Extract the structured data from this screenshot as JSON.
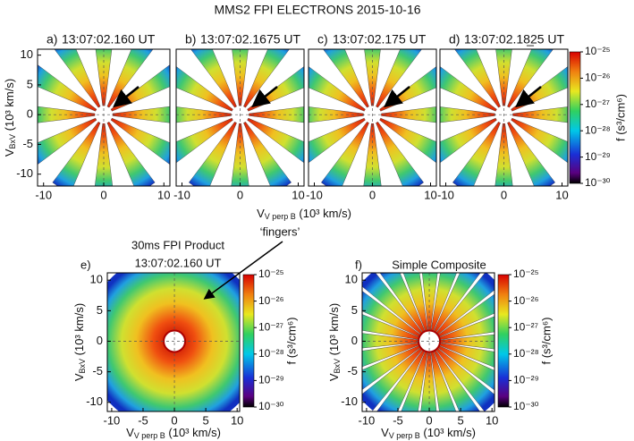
{
  "title": "MMS2 FPI ELECTRONS 2015-10-16",
  "top_row_xlabel": {
    "v": "V",
    "sub": "V perp B",
    "unit": " (10³ km/s)"
  },
  "chart_data": [
    {
      "type": "heatmap",
      "label": "a)",
      "title": "13:07:02.160 UT",
      "xlim": [
        -11,
        11
      ],
      "ylim": [
        -12,
        11
      ],
      "xticks": [
        -10,
        0,
        10
      ],
      "yticks": [
        -10,
        -5,
        0,
        5,
        10
      ],
      "ylabel": {
        "v": "V",
        "sub": "BxV",
        "unit": " (10³ km/s)"
      },
      "style": "fingers"
    },
    {
      "type": "heatmap",
      "label": "b)",
      "title": "13:07:02.1675 UT",
      "xlim": [
        -11,
        11
      ],
      "ylim": [
        -12,
        11
      ],
      "xticks": [
        -10,
        0,
        10
      ],
      "style": "fingers"
    },
    {
      "type": "heatmap",
      "label": "c)",
      "title": "13:07:02.175 UT",
      "xlim": [
        -11,
        11
      ],
      "ylim": [
        -12,
        11
      ],
      "xticks": [
        -10,
        0,
        10
      ],
      "style": "fingers"
    },
    {
      "type": "heatmap",
      "label": "d)",
      "title": "13:07:02.18̲25 UT",
      "xlim": [
        -11,
        11
      ],
      "ylim": [
        -12,
        11
      ],
      "xticks": [
        -10,
        0,
        10
      ],
      "style": "fingers",
      "colorbar": {
        "label": "f (s³/cm⁶)",
        "scale": "log",
        "lim": [
          1e-30,
          1e-25
        ],
        "ticks": [
          {
            "value": 1e-25,
            "label": "10⁻²⁵"
          },
          {
            "value": 1e-26,
            "label": "10⁻²⁶"
          },
          {
            "value": 1e-27,
            "label": "10⁻²⁷"
          },
          {
            "value": 1e-28,
            "label": "10⁻²⁸"
          },
          {
            "value": 1e-29,
            "label": "10⁻²⁹"
          },
          {
            "value": 1e-30,
            "label": "10⁻³⁰"
          }
        ]
      }
    },
    {
      "type": "heatmap",
      "label": "e)",
      "title": "30ms FPI Product",
      "subtitle": "13:07:02.160 UT",
      "annotation": "‘fingers’",
      "xlim": [
        -10.7,
        10.4
      ],
      "ylim": [
        -11.5,
        11.2
      ],
      "xticks": [
        -10,
        -5,
        0,
        5,
        10
      ],
      "yticks": [
        -10,
        -5,
        0,
        5,
        10
      ],
      "xlabel": {
        "v": "V",
        "sub": "V perp B",
        "unit": " (10³ km/s)"
      },
      "ylabel": {
        "v": "V",
        "sub": "BxV",
        "unit": " (10³ km/s)"
      },
      "style": "disk",
      "colorbar": {
        "label": "f (s³/cm⁶)",
        "scale": "log",
        "lim": [
          1e-30,
          1e-25
        ],
        "ticks": [
          {
            "value": 1e-25,
            "label": "10⁻²⁵"
          },
          {
            "value": 1e-26,
            "label": "10⁻²⁶"
          },
          {
            "value": 1e-27,
            "label": "10⁻²⁷"
          },
          {
            "value": 1e-28,
            "label": "10⁻²⁸"
          },
          {
            "value": 1e-29,
            "label": "10⁻²⁹"
          },
          {
            "value": 1e-30,
            "label": "10⁻³⁰"
          }
        ]
      }
    },
    {
      "type": "heatmap",
      "label": "f)",
      "title": "Simple Composite",
      "xlim": [
        -10.7,
        10.4
      ],
      "ylim": [
        -11.5,
        11.2
      ],
      "xticks": [
        -10,
        -5,
        0,
        5,
        10
      ],
      "yticks": [
        -10,
        -5,
        0,
        5,
        10
      ],
      "xlabel": {
        "v": "V",
        "sub": "V perp B",
        "unit": " (10³ km/s)"
      },
      "ylabel": {
        "v": "V",
        "sub": "BxV",
        "unit": " (10³ km/s)"
      },
      "style": "composite",
      "colorbar": {
        "label": "f (s³/cm⁶)",
        "scale": "log",
        "lim": [
          1e-30,
          1e-25
        ],
        "ticks": [
          {
            "value": 1e-25,
            "label": "10⁻²⁵"
          },
          {
            "value": 1e-26,
            "label": "10⁻²⁶"
          },
          {
            "value": 1e-27,
            "label": "10⁻²⁷"
          },
          {
            "value": 1e-28,
            "label": "10⁻²⁸"
          },
          {
            "value": 1e-29,
            "label": "10⁻²⁹"
          },
          {
            "value": 1e-30,
            "label": "10⁻³⁰"
          }
        ]
      }
    }
  ]
}
